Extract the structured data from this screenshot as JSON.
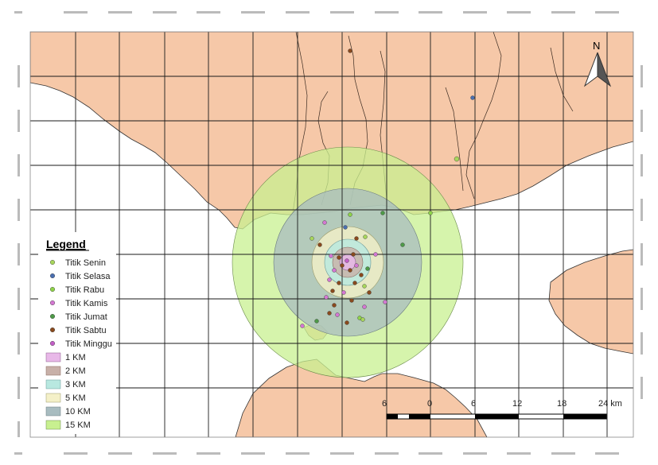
{
  "map": {
    "legend_title": "Legend",
    "points_legend": [
      {
        "label": "Titik Senin",
        "color": "#a8d65c"
      },
      {
        "label": "Titik Selasa",
        "color": "#4a6fb0"
      },
      {
        "label": "Titik Rabu",
        "color": "#8fd34a"
      },
      {
        "label": "Titik Kamis",
        "color": "#d478d2"
      },
      {
        "label": "Titik Jumat",
        "color": "#4e9a48"
      },
      {
        "label": "Titik Sabtu",
        "color": "#8a4a1e"
      },
      {
        "label": "Titik Minggu",
        "color": "#c35ec7"
      }
    ],
    "buffer_legend": [
      {
        "label": "1 KM",
        "color": "#e8b8e8"
      },
      {
        "label": "2 KM",
        "color": "#c8b0a8"
      },
      {
        "label": "3 KM",
        "color": "#b8e8e0"
      },
      {
        "label": "5 KM",
        "color": "#f4f0c8"
      },
      {
        "label": "10 KM",
        "color": "#a8bcc0"
      },
      {
        "label": "15 KM",
        "color": "#c8f090"
      }
    ],
    "north_label": "N",
    "scale_labels": [
      "6",
      "0",
      "6",
      "12",
      "18",
      "24 km"
    ],
    "colors": {
      "land": "#f6c8a8",
      "sea": "#ffffff",
      "grid": "#1a1a1a",
      "boundary": "#3a2a20"
    }
  }
}
